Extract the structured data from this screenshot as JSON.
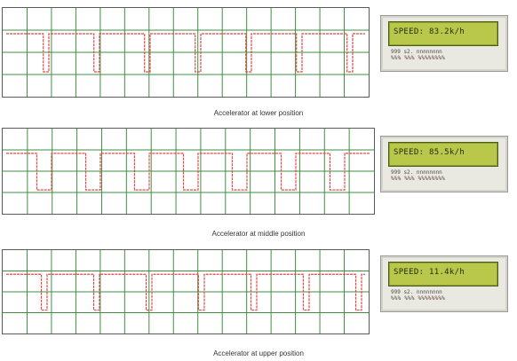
{
  "panels": [
    {
      "lcd_text": "SPEED: 83.2k/h",
      "pin_row1": "999 s2. nnnnnnnn",
      "pin_row2": "%%% %%% %%%%%%%%",
      "caption": "Accelerator at lower position",
      "waveform": {
        "period": 57,
        "phase": 5,
        "high_fraction": 0.89
      }
    },
    {
      "lcd_text": "SPEED: 85.5k/h",
      "pin_row1": "999 s2. nnnnnnnn",
      "pin_row2": "%%% %%% %%%%%%%%",
      "caption": "Accelerator at middle position",
      "waveform": {
        "period": 55,
        "phase": 0,
        "high_fraction": 0.7
      }
    },
    {
      "lcd_text": "SPEED: 11.4k/h",
      "pin_row1": "999 s2. nnnnnnnn",
      "pin_row2": "%%% %%% %%%%%%%%",
      "caption": "Accelerator at upper position",
      "waveform": {
        "period": 59,
        "phase": 9,
        "high_fraction": 0.89
      }
    }
  ],
  "colors": {
    "grid": "#3f8f3f",
    "trace": "#e04848",
    "lcd_screen": "#b9c84a"
  }
}
